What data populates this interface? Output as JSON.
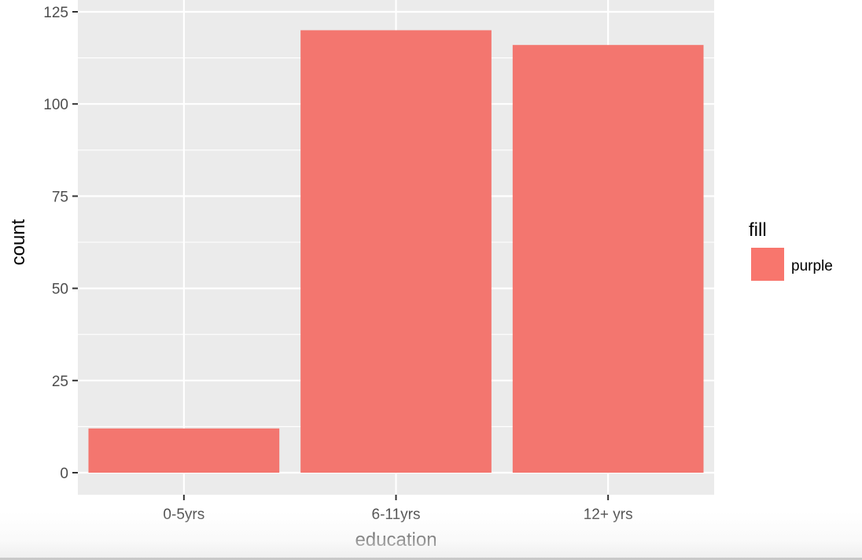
{
  "chart_data": {
    "type": "bar",
    "categories": [
      "0-5yrs",
      "6-11yrs",
      "12+ yrs"
    ],
    "values": [
      12,
      120,
      116
    ],
    "xlabel": "education",
    "ylabel": "count",
    "ylim": [
      0,
      125
    ],
    "yticks": [
      0,
      25,
      50,
      75,
      100,
      125
    ],
    "grid": true,
    "legend": {
      "title": "fill",
      "position": "right",
      "entries": [
        {
          "label": "purple",
          "color": "#F8766D"
        }
      ]
    },
    "colors": {
      "bar": "#F3766F",
      "panel": "#EBEBEB",
      "grid": "#FFFFFF"
    }
  }
}
